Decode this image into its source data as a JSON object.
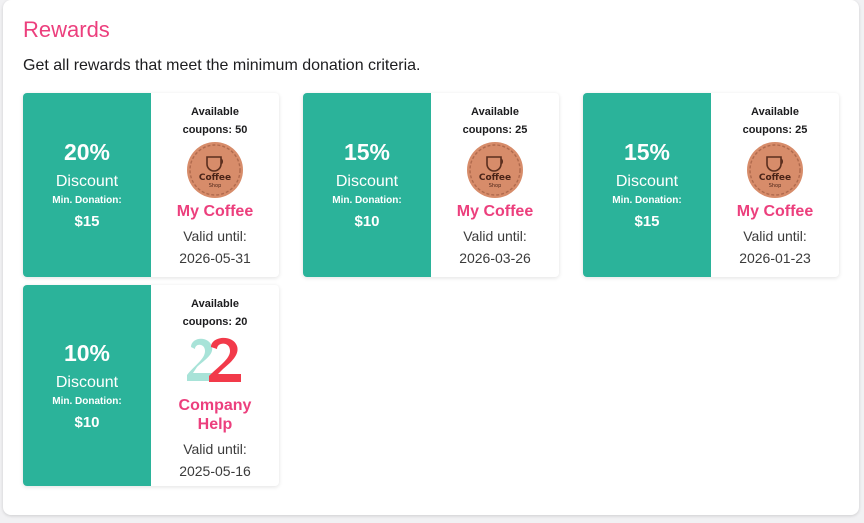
{
  "header": {
    "title": "Rewards",
    "subtitle": "Get all rewards that meet the minimum donation criteria."
  },
  "rewards": [
    {
      "percent": "20%",
      "discount_label": "Discount",
      "min_label": "Min. Donation:",
      "min_amount": "$15",
      "available": "Available coupons: 50",
      "logo": "coffee-shop-logo",
      "logo_text_top": "Coffee",
      "logo_text_bottom": "Shop",
      "merchant": "My Coffee",
      "valid_label": "Valid until:",
      "valid_date": "2026-05-31"
    },
    {
      "percent": "15%",
      "discount_label": "Discount",
      "min_label": "Min. Donation:",
      "min_amount": "$10",
      "available": "Available coupons: 25",
      "logo": "coffee-shop-logo",
      "logo_text_top": "Coffee",
      "logo_text_bottom": "Shop",
      "merchant": "My Coffee",
      "valid_label": "Valid until:",
      "valid_date": "2026-03-26"
    },
    {
      "percent": "15%",
      "discount_label": "Discount",
      "min_label": "Min. Donation:",
      "min_amount": "$15",
      "available": "Available coupons: 25",
      "logo": "coffee-shop-logo",
      "logo_text_top": "Coffee",
      "logo_text_bottom": "Shop",
      "merchant": "My Coffee",
      "valid_label": "Valid until:",
      "valid_date": "2026-01-23"
    },
    {
      "percent": "10%",
      "discount_label": "Discount",
      "min_label": "Min. Donation:",
      "min_amount": "$10",
      "available": "Available coupons: 20",
      "logo": "company-help-logo",
      "merchant": "Company Help",
      "valid_label": "Valid until:",
      "valid_date": "2025-05-16"
    }
  ],
  "colors": {
    "accent": "#ec3f7d",
    "card_green": "#2bb39a",
    "coffee_logo": "#d78c6a",
    "company_logo_red": "#f23a4a",
    "company_logo_mint": "#a8e3d8"
  }
}
